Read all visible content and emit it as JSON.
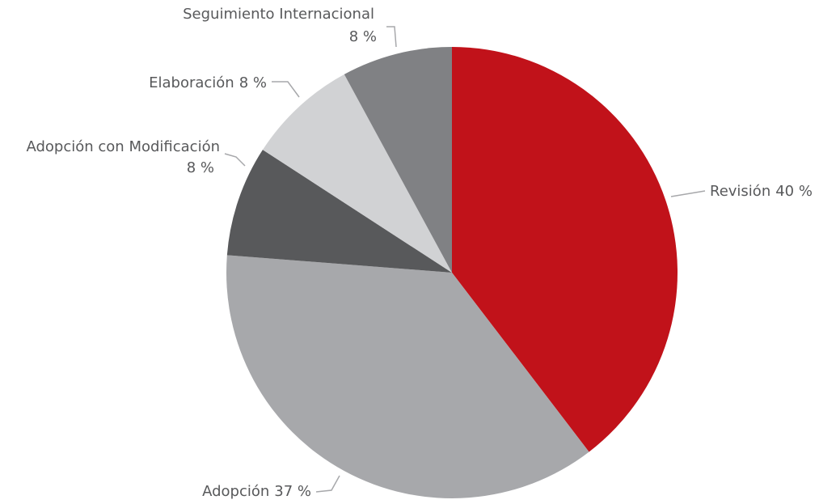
{
  "chart_data": {
    "type": "pie",
    "categories": [
      "Revisión",
      "Adopción",
      "Adopción con Modificación",
      "Elaboración",
      "Seguimiento Internacional"
    ],
    "values": [
      40,
      37,
      8,
      8,
      8
    ],
    "value_labels": [
      "40 %",
      "37 %",
      "8 %",
      "8 %",
      "8 %"
    ],
    "colors": [
      "#c1121a",
      "#a7a8ab",
      "#58595b",
      "#d1d2d4",
      "#808184"
    ]
  }
}
